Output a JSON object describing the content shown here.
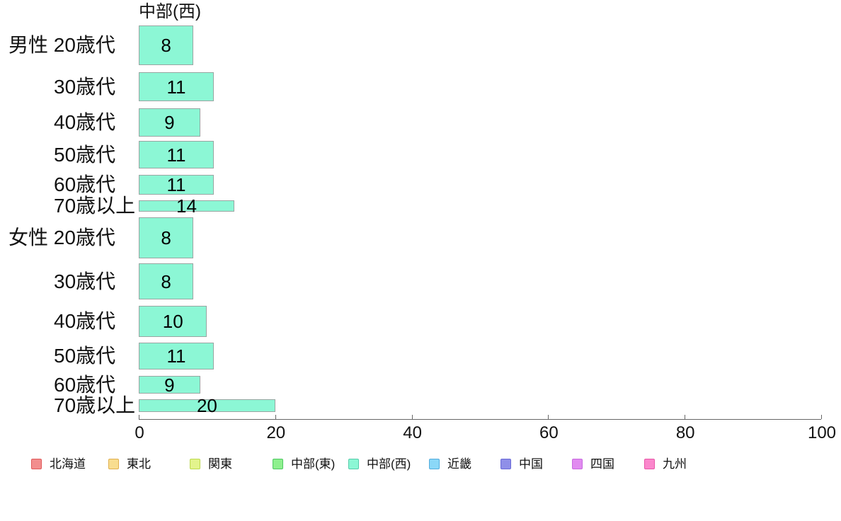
{
  "chart_data": {
    "type": "bar",
    "orientation": "horizontal",
    "title": "中部(西)",
    "series_name": "中部(西)",
    "categories": [
      "男性 20歳代",
      "30歳代",
      "40歳代",
      "50歳代",
      "60歳代",
      "70歳以上",
      "女性 20歳代",
      "30歳代",
      "40歳代",
      "50歳代",
      "60歳代",
      "70歳以上"
    ],
    "values": [
      8,
      11,
      9,
      11,
      11,
      14,
      8,
      8,
      10,
      11,
      9,
      20
    ],
    "value_labels": [
      "8",
      "11",
      "9",
      "11",
      "11",
      "14",
      "8",
      "8",
      "10",
      "11",
      "9",
      "20"
    ],
    "xlim": [
      0,
      100
    ],
    "x_ticks": [
      "0",
      "20",
      "40",
      "60",
      "80",
      "100"
    ],
    "x_tick_values": [
      0,
      20,
      40,
      60,
      80,
      100
    ],
    "grid": false,
    "legend_position": "bottom",
    "bar_fill_color": "#8cf7d5",
    "bar_border_color": "#9aa5a2",
    "legend": [
      {
        "label": "北海道",
        "fill": "#f28e8e",
        "border": "#e05a5a"
      },
      {
        "label": "東北",
        "fill": "#f8dd8f",
        "border": "#e0af4f"
      },
      {
        "label": "関東",
        "fill": "#e3f48d",
        "border": "#bcd950"
      },
      {
        "label": "中部(東)",
        "fill": "#8ef08e",
        "border": "#4fc862"
      },
      {
        "label": "中部(西)",
        "fill": "#8cf7d5",
        "border": "#56cbaa"
      },
      {
        "label": "近畿",
        "fill": "#8bd8f8",
        "border": "#53acdc"
      },
      {
        "label": "中国",
        "fill": "#8f8fe8",
        "border": "#6a6ad8"
      },
      {
        "label": "四国",
        "fill": "#e18bf0",
        "border": "#c86adf"
      },
      {
        "label": "九州",
        "fill": "#fb87cc",
        "border": "#e858a8"
      }
    ]
  }
}
